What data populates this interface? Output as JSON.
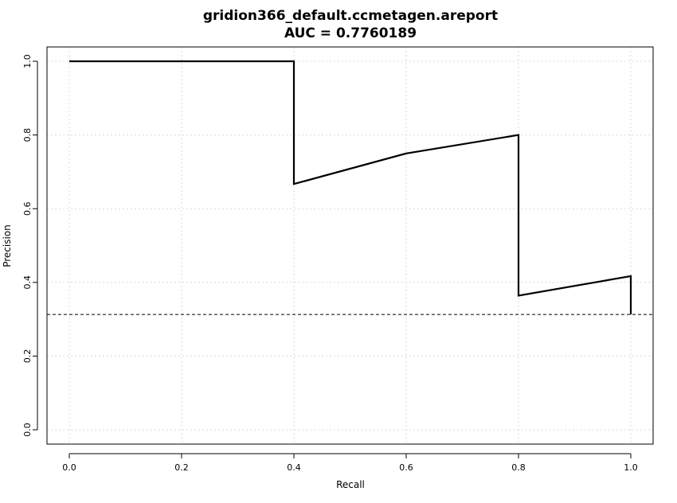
{
  "chart_data": {
    "type": "line",
    "title": "gridion366_default.ccmetagen.areport",
    "subtitle": "AUC = 0.7760189",
    "xlabel": "Recall",
    "ylabel": "Precision",
    "xlim": [
      0,
      1
    ],
    "ylim": [
      0,
      1
    ],
    "x_ticks": [
      "0.0",
      "0.2",
      "0.4",
      "0.6",
      "0.8",
      "1.0"
    ],
    "y_ticks": [
      "0.0",
      "0.2",
      "0.4",
      "0.6",
      "0.8",
      "1.0"
    ],
    "x_tick_values": [
      0,
      0.2,
      0.4,
      0.6,
      0.8,
      1.0
    ],
    "y_tick_values": [
      0,
      0.2,
      0.4,
      0.6,
      0.8,
      1.0
    ],
    "grid": true,
    "series": [
      {
        "x": [
          0.0,
          0.4,
          0.4,
          0.6,
          0.8,
          0.8,
          1.0,
          1.0
        ],
        "y": [
          1.0,
          1.0,
          0.667,
          0.75,
          0.8,
          0.364,
          0.417,
          0.313
        ]
      }
    ],
    "baseline": {
      "y": 0.313,
      "style": "dashed"
    },
    "colors": {
      "line": "#000000",
      "grid": "#d9d9d9"
    }
  }
}
